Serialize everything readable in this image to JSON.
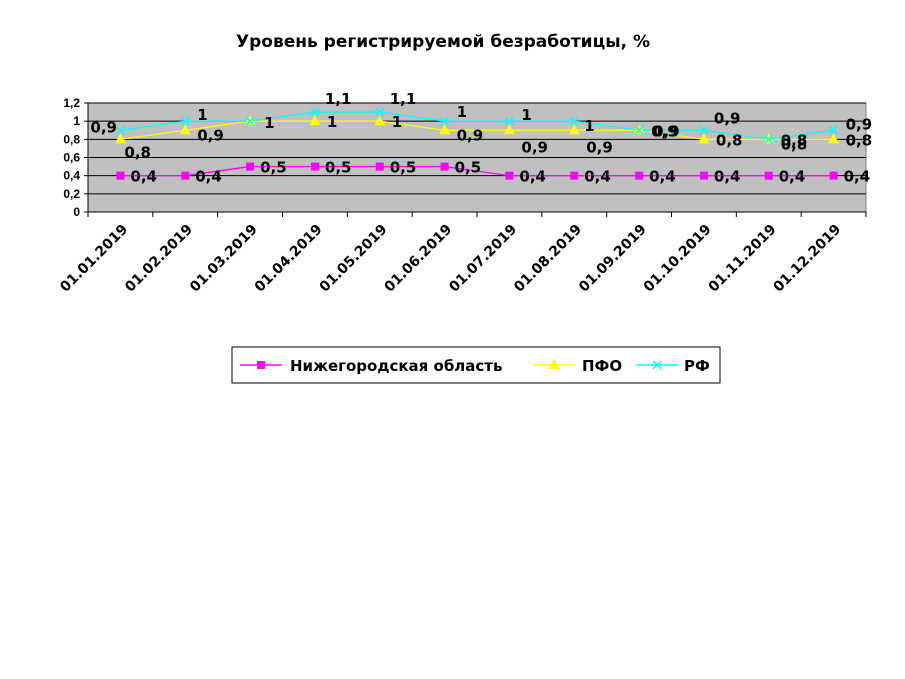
{
  "chart_data": {
    "type": "line",
    "title": "Уровень регистрируемой безработицы, %",
    "categories": [
      "01.01.2019",
      "01.02.2019",
      "01.03.2019",
      "01.04.2019",
      "01.05.2019",
      "01.06.2019",
      "01.07.2019",
      "01.08.2019",
      "01.09.2019",
      "01.10.2019",
      "01.11.2019",
      "01.12.2019"
    ],
    "ylim": [
      0,
      1.2
    ],
    "yticks": [
      "0",
      "0,2",
      "0,4",
      "0,6",
      "0,8",
      "1",
      "1,2"
    ],
    "grid": true,
    "legend_position": "bottom",
    "series": [
      {
        "name": "Нижегородская область",
        "color": "#ff00ff",
        "marker": "square",
        "values": [
          0.4,
          0.4,
          0.5,
          0.5,
          0.5,
          0.5,
          0.4,
          0.4,
          0.4,
          0.4,
          0.4,
          0.4
        ],
        "labels": [
          "0,4",
          "0,4",
          "0,5",
          "0,5",
          "0,5",
          "0,5",
          "0,4",
          "0,4",
          "0,4",
          "0,4",
          "0,4",
          "0,4"
        ]
      },
      {
        "name": "ПФО",
        "color": "#ffff00",
        "marker": "triangle",
        "values": [
          0.8,
          0.9,
          1,
          1,
          1,
          0.9,
          0.9,
          0.9,
          0.9,
          0.8,
          0.8,
          0.8
        ],
        "labels": [
          "0,8",
          "0,9",
          "1",
          "1",
          "1",
          "0,9",
          "0,9",
          "0,9",
          "0,9",
          "0,8",
          "0,8",
          "0,8"
        ]
      },
      {
        "name": "РФ",
        "color": "#00ffff",
        "marker": "x",
        "values": [
          0.9,
          1,
          1,
          1.1,
          1.1,
          1,
          1,
          1,
          0.9,
          0.9,
          0.8,
          0.9
        ],
        "labels": [
          "0,9",
          "1",
          "1",
          "1,1",
          "1,1",
          "1",
          "1",
          "1",
          "0,9",
          "0,9",
          "0,8",
          "0,9"
        ]
      }
    ]
  }
}
